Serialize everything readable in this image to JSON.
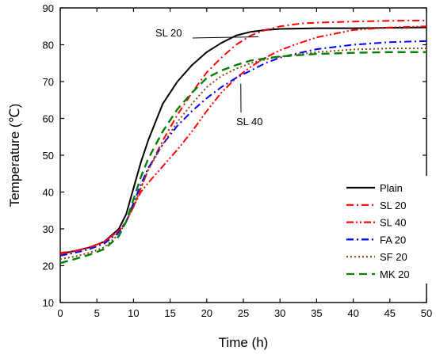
{
  "chart_data": {
    "type": "line",
    "xlabel": "Time (h)",
    "ylabel": "Temperature (℃)",
    "xlim": [
      0,
      50
    ],
    "ylim": [
      10,
      90
    ],
    "xticks": [
      0,
      5,
      10,
      15,
      20,
      25,
      30,
      35,
      40,
      45,
      50
    ],
    "yticks": [
      10,
      20,
      30,
      40,
      50,
      60,
      70,
      80,
      90
    ],
    "grid": false,
    "legend_position": "bottom-right",
    "series": [
      {
        "name": "Plain",
        "color": "#000000",
        "dash": "solid",
        "x": [
          0,
          2,
          4,
          6,
          8,
          9,
          10,
          11,
          12,
          13,
          14,
          16,
          18,
          20,
          22,
          24,
          26,
          28,
          30,
          35,
          40,
          45,
          50
        ],
        "y": [
          23.2,
          24,
          25,
          26.5,
          30,
          34,
          41,
          48,
          54,
          59,
          64,
          70,
          74.5,
          78,
          80.5,
          82.5,
          83.5,
          84,
          84.3,
          84.5,
          84.5,
          84.6,
          84.7
        ]
      },
      {
        "name": "SL 20",
        "color": "#ff0000",
        "dash": "dashdot",
        "x": [
          0,
          2,
          4,
          6,
          8,
          9,
          10,
          11,
          12,
          13,
          14,
          16,
          18,
          20,
          22,
          24,
          26,
          28,
          30,
          33,
          35,
          40,
          45,
          50
        ],
        "y": [
          23.5,
          24,
          25,
          26.5,
          29.5,
          32,
          36,
          41,
          46,
          50,
          54,
          61,
          67,
          72.5,
          76.5,
          80,
          82.5,
          84,
          85,
          85.8,
          86,
          86.3,
          86.5,
          86.6
        ]
      },
      {
        "name": "SL 40",
        "color": "#ff0000",
        "dash": "dashdotdot",
        "x": [
          0,
          2,
          4,
          6,
          8,
          9,
          10,
          11,
          12,
          14,
          16,
          18,
          20,
          22,
          24,
          26,
          28,
          30,
          32,
          35,
          40,
          45,
          50
        ],
        "y": [
          23,
          24,
          25,
          26.5,
          29.5,
          32,
          36,
          40,
          42.5,
          47,
          51.5,
          56.5,
          62,
          67,
          71,
          74,
          76.5,
          78.5,
          80,
          82,
          84,
          84.7,
          85
        ]
      },
      {
        "name": "FA 20",
        "color": "#0000ff",
        "dash": "dashdot",
        "x": [
          0,
          2,
          4,
          6,
          8,
          9,
          10,
          11,
          12,
          14,
          16,
          18,
          20,
          22,
          24,
          26,
          28,
          30,
          32,
          35,
          40,
          45,
          50
        ],
        "y": [
          22.7,
          23.5,
          24.5,
          26,
          29,
          32,
          37,
          42,
          46.5,
          53,
          58,
          62,
          65.5,
          68.5,
          71,
          73,
          75,
          76.5,
          77.5,
          78.8,
          80,
          80.7,
          81
        ]
      },
      {
        "name": "SF 20",
        "color": "#8b4513",
        "dash": "dot",
        "x": [
          0,
          2,
          4,
          6,
          8,
          9,
          10,
          11,
          12,
          14,
          16,
          18,
          20,
          22,
          24,
          26,
          28,
          30,
          35,
          40,
          45,
          50
        ],
        "y": [
          21.8,
          22.5,
          23.5,
          25,
          28.5,
          32,
          36,
          41,
          46,
          53,
          59,
          64,
          68.5,
          71.5,
          73.5,
          75,
          76,
          76.8,
          78,
          78.7,
          79,
          79
        ]
      },
      {
        "name": "MK 20",
        "color": "#008000",
        "dash": "dashed",
        "x": [
          0,
          2,
          4,
          6,
          8,
          9,
          10,
          11,
          12,
          14,
          16,
          18,
          20,
          22,
          24,
          26,
          28,
          30,
          35,
          40,
          45,
          50
        ],
        "y": [
          20.7,
          21.8,
          23,
          24.5,
          28,
          32,
          38,
          44,
          49,
          56.5,
          62.5,
          67,
          71,
          73,
          74.5,
          75.7,
          76.3,
          76.8,
          77.5,
          77.8,
          78,
          78
        ]
      }
    ],
    "annotations": [
      {
        "text": "SL 20",
        "x": 27.5,
        "y": 83
      },
      {
        "text": "SL 40",
        "x": 24,
        "y": 70.5
      }
    ]
  }
}
